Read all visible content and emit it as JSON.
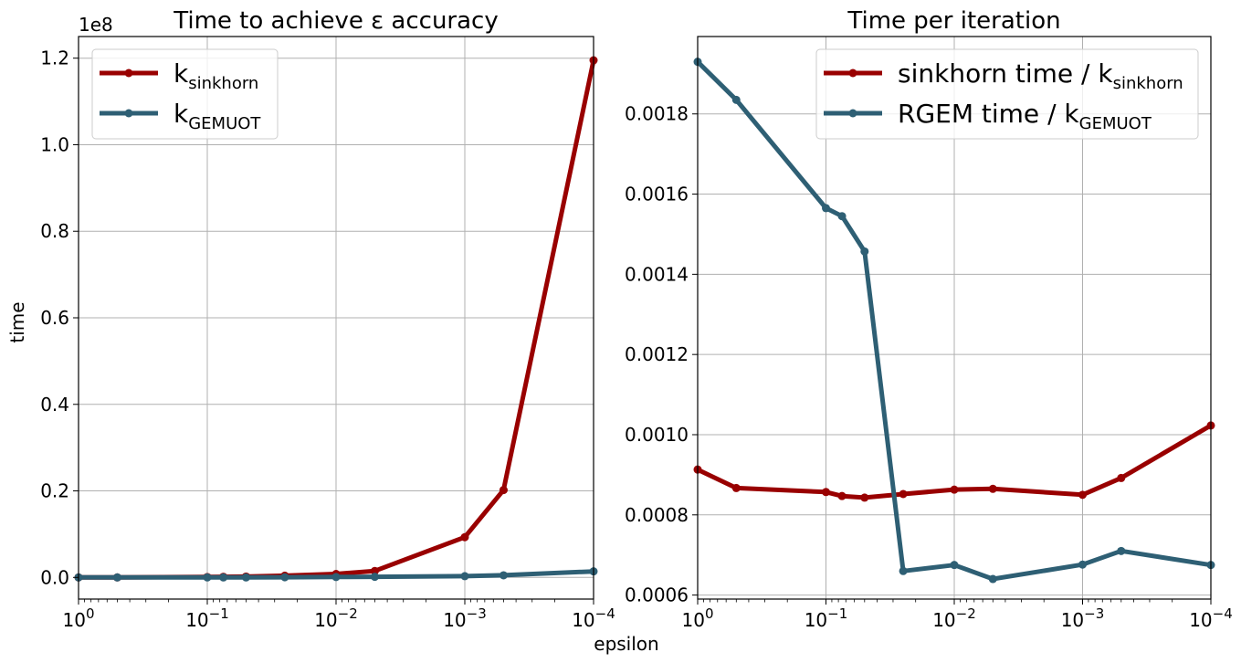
{
  "figure": {
    "xlabel": "epsilon"
  },
  "chart_data": [
    {
      "type": "line",
      "title": "Time to achieve ε accuracy",
      "xlabel": "",
      "ylabel": "time",
      "xscale": "log",
      "xaxis_reversed": true,
      "xlim": [
        1,
        0.0001
      ],
      "ylim": [
        -5000000,
        125000000
      ],
      "offset_label": "1e8",
      "yticks": [
        0,
        20000000,
        40000000,
        60000000,
        80000000,
        100000000,
        120000000
      ],
      "ytick_labels": [
        "0.0",
        "0.2",
        "0.4",
        "0.6",
        "0.8",
        "1.0",
        "1.2"
      ],
      "xticks": [
        1,
        0.1,
        0.01,
        0.001,
        0.0001
      ],
      "xtick_labels": [
        [
          "10",
          "0"
        ],
        [
          "10",
          "−1"
        ],
        [
          "10",
          "−2"
        ],
        [
          "10",
          "−3"
        ],
        [
          "10",
          "−4"
        ]
      ],
      "grid": true,
      "legend_position": "top-left",
      "x": [
        1,
        0.5,
        0.1,
        0.075,
        0.05,
        0.025,
        0.01,
        0.005,
        0.001,
        0.0005,
        0.0001
      ],
      "series": [
        {
          "name": "k",
          "name_sub": "sinkhorn",
          "color": "#990000",
          "values": [
            0,
            0,
            100000,
            150000,
            200000,
            400000,
            800000,
            1500000,
            9300000,
            20200000,
            119500000
          ]
        },
        {
          "name": "k",
          "name_sub": "GEMUOT",
          "color": "#2e5f74",
          "values": [
            0,
            0,
            0,
            0,
            0,
            50000,
            100000,
            150000,
            300000,
            500000,
            1400000
          ]
        }
      ]
    },
    {
      "type": "line",
      "title": "Time per iteration",
      "xlabel": "",
      "ylabel": "",
      "xscale": "log",
      "xaxis_reversed": true,
      "xlim": [
        1,
        0.0001
      ],
      "ylim": [
        0.00059,
        0.001993
      ],
      "yticks": [
        0.0006,
        0.0008,
        0.001,
        0.0012,
        0.0014,
        0.0016,
        0.0018
      ],
      "ytick_labels": [
        "0.0006",
        "0.0008",
        "0.0010",
        "0.0012",
        "0.0014",
        "0.0016",
        "0.0018"
      ],
      "xticks": [
        1,
        0.1,
        0.01,
        0.001,
        0.0001
      ],
      "xtick_labels": [
        [
          "10",
          "0"
        ],
        [
          "10",
          "−1"
        ],
        [
          "10",
          "−2"
        ],
        [
          "10",
          "−3"
        ],
        [
          "10",
          "−4"
        ]
      ],
      "grid": true,
      "legend_position": "top-right",
      "x": [
        1,
        0.5,
        0.1,
        0.075,
        0.05,
        0.025,
        0.01,
        0.005,
        0.001,
        0.0005,
        0.0001
      ],
      "series": [
        {
          "name": "sinkhorn time / k",
          "name_sub": "sinkhorn",
          "color": "#990000",
          "values": [
            0.000913,
            0.000867,
            0.000857,
            0.000847,
            0.000843,
            0.000852,
            0.000863,
            0.000865,
            0.00085,
            0.000892,
            0.001023
          ]
        },
        {
          "name": "RGEM time / k",
          "name_sub": "GEMUOT",
          "color": "#2e5f74",
          "values": [
            0.00193,
            0.001835,
            0.001565,
            0.001545,
            0.001457,
            0.00066,
            0.000675,
            0.00064,
            0.000676,
            0.00071,
            0.000675
          ]
        }
      ]
    }
  ]
}
